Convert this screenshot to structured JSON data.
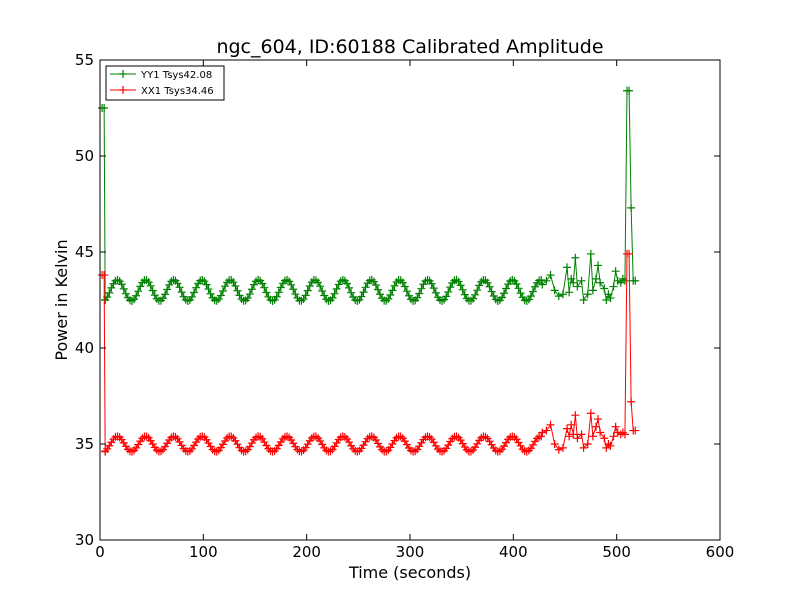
{
  "chart_data": {
    "type": "line",
    "title": "ngc_604, ID:60188 Calibrated Amplitude",
    "xlabel": "Time (seconds)",
    "ylabel": "Power in Kelvin",
    "xlim": [
      0,
      600
    ],
    "ylim": [
      30,
      55
    ],
    "xticks": [
      0,
      100,
      200,
      300,
      400,
      500,
      600
    ],
    "yticks": [
      30,
      35,
      40,
      45,
      50,
      55
    ],
    "grid": false,
    "legend_placement": "top-left",
    "marker": "plus",
    "series": [
      {
        "name": "YY1 Tsys42.08",
        "color": "#008000",
        "start": [
          [
            2,
            52.5
          ],
          [
            4,
            52.5
          ],
          [
            5,
            42.5
          ]
        ],
        "oscillation": {
          "x_start": 5,
          "x_end": 428,
          "step": 2,
          "mean": 43.0,
          "amplitude": 0.55,
          "period": 27.3,
          "phase_x": 10
        },
        "end": [
          [
            428,
            43.3
          ],
          [
            432,
            43.5
          ],
          [
            436,
            43.8
          ],
          [
            440,
            43.0
          ],
          [
            444,
            42.7
          ],
          [
            448,
            42.8
          ],
          [
            452,
            44.2
          ],
          [
            454,
            42.9
          ],
          [
            456,
            43.6
          ],
          [
            458,
            43.4
          ],
          [
            460,
            44.7
          ],
          [
            462,
            43.2
          ],
          [
            466,
            43.5
          ],
          [
            468,
            42.5
          ],
          [
            472,
            42.8
          ],
          [
            475,
            44.9
          ],
          [
            477,
            43.0
          ],
          [
            480,
            43.6
          ],
          [
            482,
            44.3
          ],
          [
            484,
            43.4
          ],
          [
            488,
            43.1
          ],
          [
            490,
            42.5
          ],
          [
            492,
            42.8
          ],
          [
            494,
            42.6
          ],
          [
            497,
            43.2
          ],
          [
            499,
            44.0
          ],
          [
            501,
            43.5
          ],
          [
            504,
            43.4
          ],
          [
            506,
            43.6
          ],
          [
            508,
            43.5
          ],
          [
            510,
            53.4
          ],
          [
            512,
            53.4
          ],
          [
            514,
            47.3
          ],
          [
            516,
            43.5
          ],
          [
            518,
            43.5
          ]
        ]
      },
      {
        "name": "XX1 Tsys34.46",
        "color": "#ff0000",
        "start": [
          [
            2,
            43.8
          ],
          [
            4,
            43.8
          ],
          [
            5,
            34.6
          ]
        ],
        "oscillation": {
          "x_start": 5,
          "x_end": 428,
          "step": 2,
          "mean": 35.0,
          "amplitude": 0.4,
          "period": 27.3,
          "phase_x": 10
        },
        "end": [
          [
            428,
            35.6
          ],
          [
            432,
            35.7
          ],
          [
            436,
            36.0
          ],
          [
            440,
            35.0
          ],
          [
            444,
            34.7
          ],
          [
            448,
            34.8
          ],
          [
            452,
            35.8
          ],
          [
            454,
            35.4
          ],
          [
            456,
            36.0
          ],
          [
            458,
            35.5
          ],
          [
            460,
            36.5
          ],
          [
            462,
            35.3
          ],
          [
            466,
            35.5
          ],
          [
            468,
            34.8
          ],
          [
            472,
            35.0
          ],
          [
            475,
            36.6
          ],
          [
            477,
            35.4
          ],
          [
            480,
            35.9
          ],
          [
            482,
            36.3
          ],
          [
            484,
            35.6
          ],
          [
            488,
            35.3
          ],
          [
            490,
            34.8
          ],
          [
            492,
            35.0
          ],
          [
            494,
            34.9
          ],
          [
            497,
            35.4
          ],
          [
            499,
            35.9
          ],
          [
            501,
            35.6
          ],
          [
            504,
            35.5
          ],
          [
            506,
            35.6
          ],
          [
            508,
            35.5
          ],
          [
            510,
            44.9
          ],
          [
            512,
            44.9
          ],
          [
            514,
            37.2
          ],
          [
            516,
            35.7
          ],
          [
            518,
            35.7
          ]
        ]
      }
    ]
  }
}
